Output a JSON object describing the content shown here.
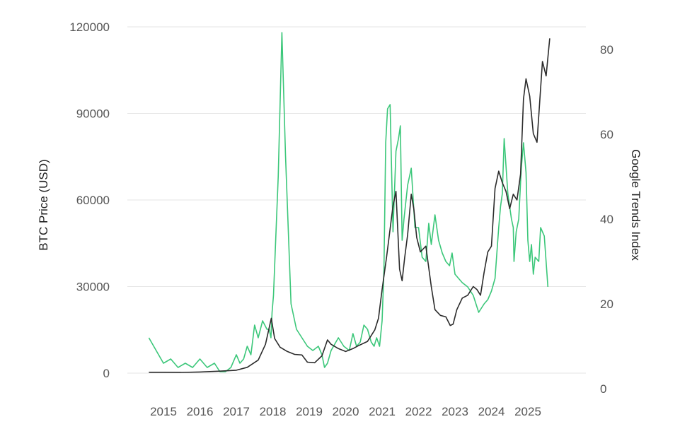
{
  "chart_data": {
    "type": "line",
    "title": "",
    "ylabel_left": "BTC Price (USD)",
    "ylabel_right": "Google Trends Index",
    "xlabel": "",
    "x_ticks": [
      "2015",
      "2016",
      "2017",
      "2018",
      "2019",
      "2020",
      "2021",
      "2022",
      "2023",
      "2024",
      "2025"
    ],
    "ylim_left": [
      0,
      120000
    ],
    "yticks_left": [
      "0",
      "30000",
      "60000",
      "90000",
      "120000"
    ],
    "ylim_right": [
      0,
      85
    ],
    "yticks_right": [
      "0",
      "20",
      "40",
      "60",
      "80"
    ],
    "grid": "horizontal",
    "legend": "none",
    "colors": {
      "price": "#2b2b2b",
      "trends": "#3cc77a"
    },
    "series": [
      {
        "axis": "left",
        "color": "#2b2b2b",
        "x": [
          2014.6,
          2015.0,
          2015.5,
          2016.0,
          2016.5,
          2017.0,
          2017.3,
          2017.6,
          2017.8,
          2017.96,
          2018.05,
          2018.2,
          2018.4,
          2018.6,
          2018.8,
          2018.95,
          2019.15,
          2019.35,
          2019.5,
          2019.6,
          2019.8,
          2020.0,
          2020.2,
          2020.35,
          2020.6,
          2020.8,
          2020.9,
          2021.0,
          2021.12,
          2021.2,
          2021.3,
          2021.38,
          2021.48,
          2021.55,
          2021.62,
          2021.7,
          2021.8,
          2021.87,
          2021.95,
          2022.05,
          2022.2,
          2022.35,
          2022.45,
          2022.6,
          2022.75,
          2022.87,
          2022.95,
          2023.05,
          2023.2,
          2023.35,
          2023.5,
          2023.6,
          2023.7,
          2023.8,
          2023.9,
          2024.0,
          2024.1,
          2024.2,
          2024.3,
          2024.4,
          2024.5,
          2024.6,
          2024.7,
          2024.8,
          2024.88,
          2024.95,
          2025.05,
          2025.15,
          2025.25,
          2025.33,
          2025.4,
          2025.5,
          2025.6
        ],
        "y": [
          300,
          300,
          250,
          400,
          650,
          1000,
          2000,
          4500,
          10000,
          19000,
          12000,
          9000,
          7500,
          6500,
          6300,
          3800,
          3600,
          6000,
          11500,
          10000,
          8500,
          7500,
          8500,
          9500,
          11000,
          15000,
          19000,
          29000,
          40000,
          48000,
          58000,
          63000,
          36000,
          32000,
          40000,
          48000,
          62000,
          57000,
          47000,
          42000,
          44000,
          30000,
          22000,
          20000,
          19500,
          16500,
          17000,
          22000,
          26000,
          27000,
          30000,
          29000,
          27000,
          35000,
          42000,
          44000,
          64000,
          70000,
          66000,
          63000,
          57000,
          62000,
          60000,
          69000,
          95000,
          102000,
          96000,
          83000,
          80000,
          95000,
          108000,
          103000,
          116000
        ]
      },
      {
        "axis": "right",
        "color": "#3cc77a",
        "x": [
          2014.6,
          2014.8,
          2015.0,
          2015.2,
          2015.4,
          2015.6,
          2015.8,
          2016.0,
          2016.2,
          2016.4,
          2016.55,
          2016.7,
          2016.85,
          2017.0,
          2017.1,
          2017.2,
          2017.3,
          2017.4,
          2017.5,
          2017.6,
          2017.72,
          2017.84,
          2017.9,
          2017.95,
          2017.98,
          2018.02,
          2018.08,
          2018.15,
          2018.25,
          2018.35,
          2018.5,
          2018.65,
          2018.8,
          2018.95,
          2019.1,
          2019.25,
          2019.35,
          2019.42,
          2019.5,
          2019.6,
          2019.8,
          2019.95,
          2020.1,
          2020.2,
          2020.3,
          2020.4,
          2020.5,
          2020.6,
          2020.7,
          2020.78,
          2020.85,
          2020.93,
          2021.0,
          2021.05,
          2021.1,
          2021.15,
          2021.22,
          2021.3,
          2021.38,
          2021.45,
          2021.5,
          2021.55,
          2021.6,
          2021.7,
          2021.8,
          2021.9,
          2022.0,
          2022.1,
          2022.2,
          2022.28,
          2022.35,
          2022.45,
          2022.55,
          2022.65,
          2022.75,
          2022.85,
          2022.92,
          2023.0,
          2023.1,
          2023.2,
          2023.35,
          2023.5,
          2023.65,
          2023.8,
          2023.9,
          2024.0,
          2024.1,
          2024.2,
          2024.25,
          2024.3,
          2024.35,
          2024.45,
          2024.55,
          2024.6,
          2024.62,
          2024.68,
          2024.75,
          2024.82,
          2024.88,
          2024.95,
          2025.0,
          2025.05,
          2025.1,
          2025.15,
          2025.2,
          2025.3,
          2025.35,
          2025.45,
          2025.55
        ],
        "y": [
          12,
          9,
          6,
          7,
          5,
          6,
          5,
          7,
          5,
          6,
          4,
          4,
          5,
          8,
          6,
          7,
          10,
          8,
          15,
          12,
          16,
          14,
          14,
          12,
          18,
          22,
          35,
          50,
          84,
          55,
          20,
          14,
          12,
          10,
          9,
          10,
          8,
          5,
          6,
          9,
          12,
          10,
          9,
          13,
          10,
          11,
          15,
          14,
          11,
          10,
          12,
          10,
          16,
          28,
          58,
          66,
          67,
          37,
          56,
          59,
          62,
          35,
          40,
          48,
          52,
          38,
          38,
          31,
          30,
          39,
          34,
          41,
          35,
          32,
          30,
          29,
          32,
          27,
          26,
          25,
          24,
          22,
          18,
          20,
          21,
          23,
          26,
          38,
          43,
          46,
          59,
          46,
          40,
          38,
          30,
          37,
          40,
          52,
          58,
          51,
          35,
          30,
          34,
          27,
          31,
          30,
          38,
          36,
          24
        ]
      }
    ]
  }
}
